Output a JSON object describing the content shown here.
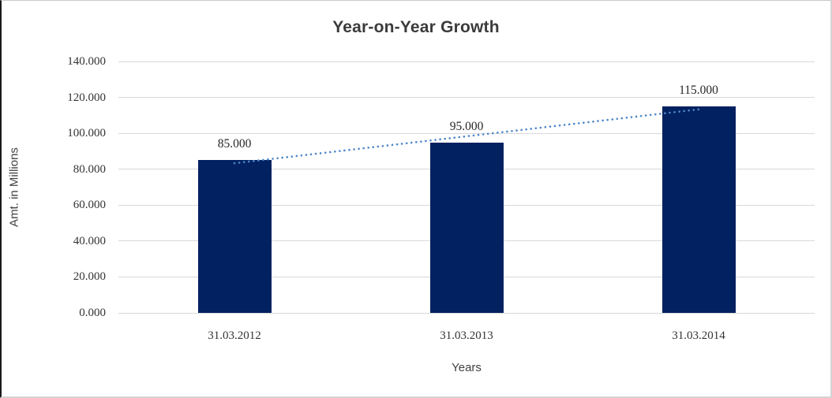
{
  "chart_data": {
    "type": "bar",
    "title": "Year-on-Year Growth",
    "xlabel": "Years",
    "ylabel": "Amt. in Millions",
    "categories": [
      "31.03.2012",
      "31.03.2013",
      "31.03.2014"
    ],
    "values": [
      85,
      95,
      115
    ],
    "value_labels": [
      "85.000",
      "95.000",
      "115.000"
    ],
    "ytick_values": [
      0,
      20,
      40,
      60,
      80,
      100,
      120,
      140
    ],
    "ytick_labels": [
      "0.000",
      "20.000",
      "40.000",
      "60.000",
      "80.000",
      "100.000",
      "120.000",
      "140.000"
    ],
    "ylim": [
      0,
      140
    ],
    "grid": "horizontal",
    "legend": "none",
    "colors": {
      "bar": "#022161",
      "trendline": "#4d87c8",
      "gridline": "#d9d9d9",
      "title_text": "#3b3b3b",
      "tick_text": "#333333"
    },
    "trendline": {
      "fit": "linear",
      "style": "dotted"
    }
  }
}
